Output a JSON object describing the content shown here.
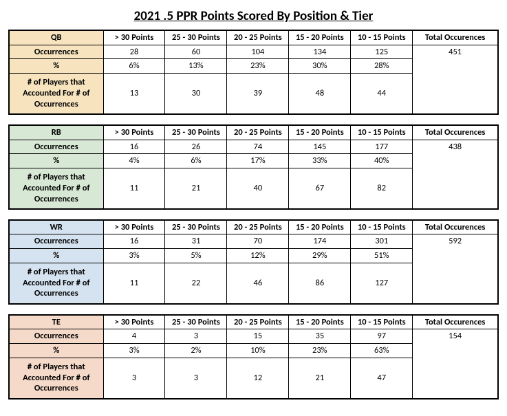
{
  "title": "2021 .5 PPR Points Scored By Position & Tier",
  "columns": [
    "> 30 Points",
    "25 - 30 Points",
    "20 - 25 Points",
    "15 - 20 Points",
    "10 - 15 Points"
  ],
  "total_header": "Total Occurences",
  "row_labels": {
    "occ": "Occurrences",
    "pct": "%",
    "players": "# of Players that Accounted For # of Occurrences"
  },
  "positions": [
    {
      "key": "QB",
      "header_bg": "#f7e4bf",
      "occ": [
        28,
        60,
        104,
        134,
        125
      ],
      "total": 451,
      "pct": [
        "6%",
        "13%",
        "23%",
        "30%",
        "28%"
      ],
      "players": [
        13,
        30,
        39,
        48,
        44
      ]
    },
    {
      "key": "RB",
      "header_bg": "#d7e8d4",
      "occ": [
        16,
        26,
        74,
        145,
        177
      ],
      "total": 438,
      "pct": [
        "4%",
        "6%",
        "17%",
        "33%",
        "40%"
      ],
      "players": [
        11,
        21,
        40,
        67,
        82
      ]
    },
    {
      "key": "WR",
      "header_bg": "#d5e2ef",
      "occ": [
        16,
        31,
        70,
        174,
        301
      ],
      "total": 592,
      "pct": [
        "3%",
        "5%",
        "12%",
        "29%",
        "51%"
      ],
      "players": [
        11,
        22,
        46,
        86,
        127
      ]
    },
    {
      "key": "TE",
      "header_bg": "#f5d9c9",
      "occ": [
        4,
        3,
        15,
        35,
        97
      ],
      "total": 154,
      "pct": [
        "3%",
        "2%",
        "10%",
        "23%",
        "63%"
      ],
      "players": [
        3,
        3,
        12,
        21,
        47
      ]
    }
  ]
}
